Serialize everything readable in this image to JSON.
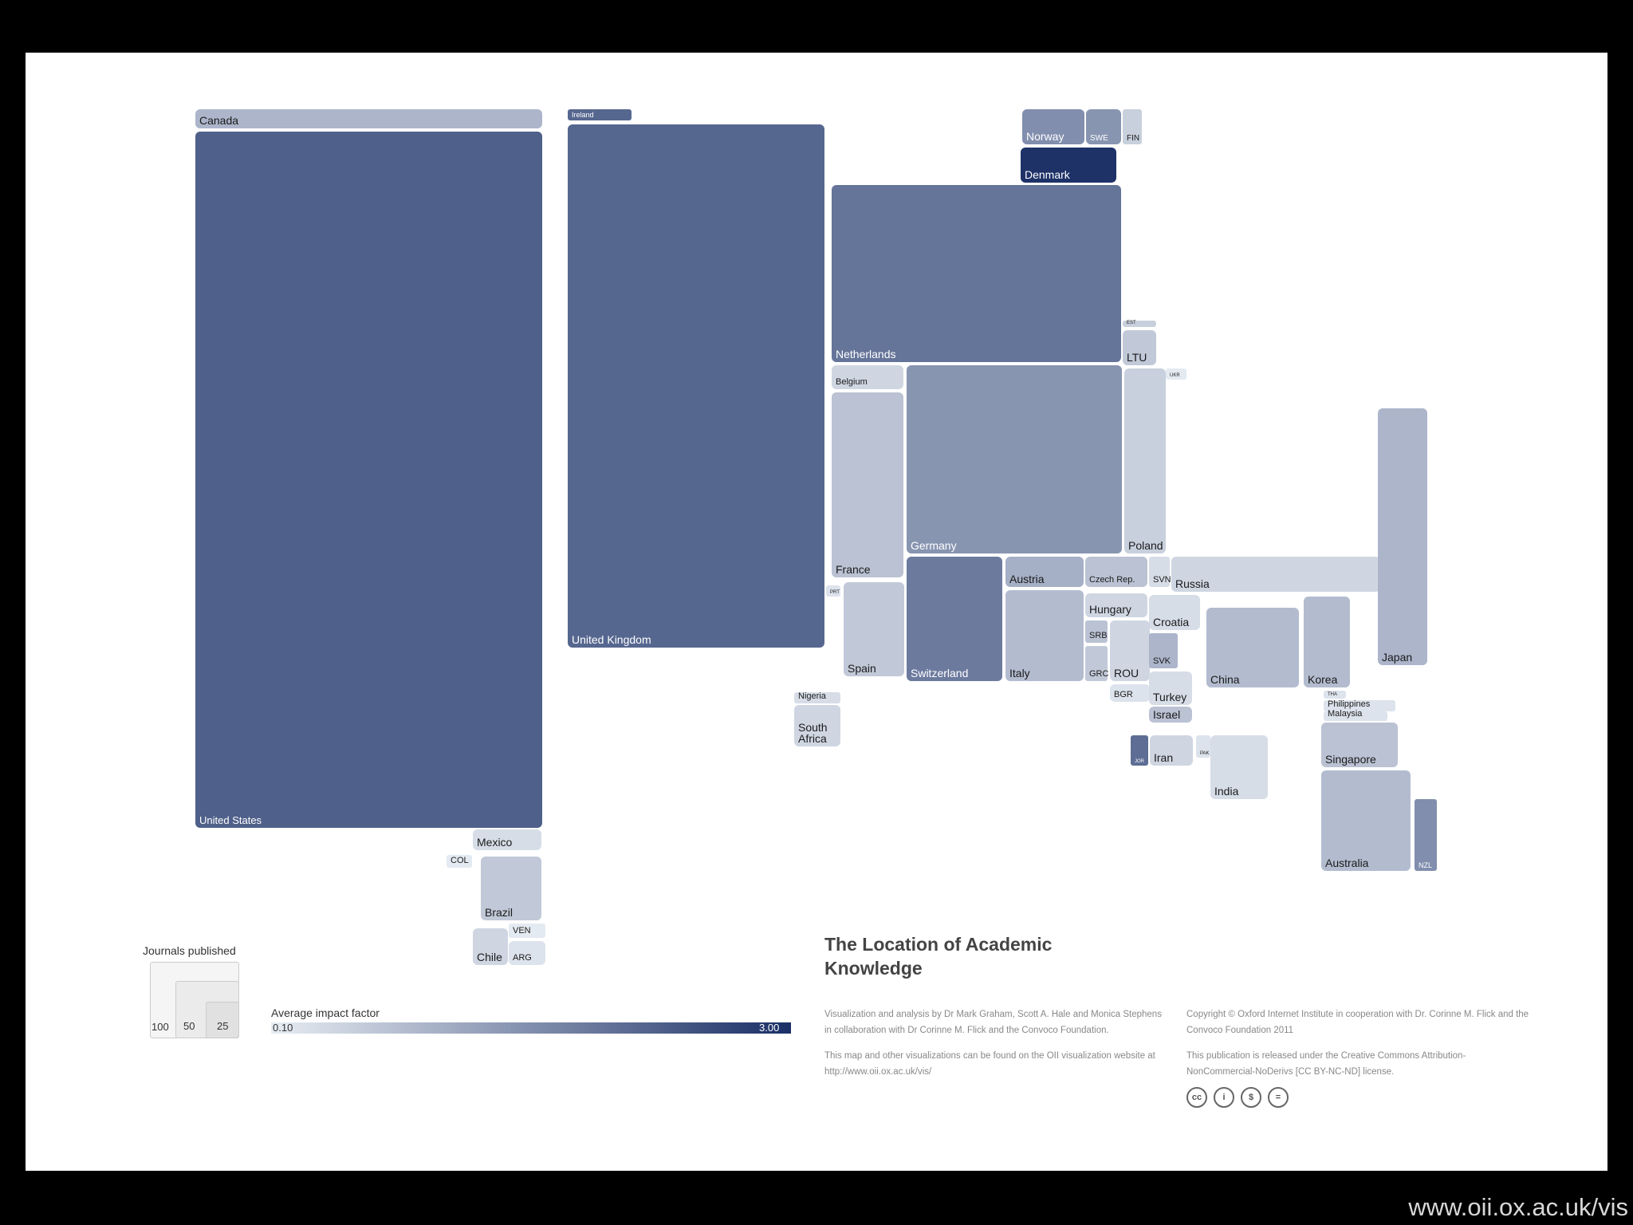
{
  "chart_data": {
    "type": "treemap",
    "title": "The Location of Academic Knowledge",
    "size_measure": "Journals published",
    "color_measure": "Average impact factor",
    "color_scale": {
      "min": 0.1,
      "max": 3.0,
      "min_label": "0.10",
      "max_label": "3.00",
      "low_color": "#e8edf3",
      "high_color": "#1a2f66"
    },
    "size_legend": {
      "title": "Journals published",
      "values": [
        "100",
        "50",
        "25"
      ]
    },
    "countries": [
      {
        "name": "United States",
        "label": "United States",
        "impact": 2.25
      },
      {
        "name": "Canada",
        "label": "Canada",
        "impact": 0.95
      },
      {
        "name": "United Kingdom",
        "label": "United Kingdom",
        "impact": 2.15
      },
      {
        "name": "Ireland",
        "label": "Ireland",
        "impact": 2.15
      },
      {
        "name": "Netherlands",
        "label": "Netherlands",
        "impact": 1.95
      },
      {
        "name": "Norway",
        "label": "Norway",
        "impact": 1.55
      },
      {
        "name": "Sweden",
        "label": "SWE",
        "impact": 1.45
      },
      {
        "name": "Finland",
        "label": "FIN",
        "impact": 0.55
      },
      {
        "name": "Denmark",
        "label": "Denmark",
        "impact": 2.95
      },
      {
        "name": "Estonia",
        "label": "EST",
        "impact": 0.55
      },
      {
        "name": "Lithuania",
        "label": "LTU",
        "impact": 0.65
      },
      {
        "name": "Ukraine",
        "label": "UKR",
        "impact": 0.15
      },
      {
        "name": "Belgium",
        "label": "Belgium",
        "impact": 0.45
      },
      {
        "name": "Germany",
        "label": "Germany",
        "impact": 1.45
      },
      {
        "name": "Poland",
        "label": "Poland",
        "impact": 0.55
      },
      {
        "name": "France",
        "label": "France",
        "impact": 0.75
      },
      {
        "name": "Portugal",
        "label": "PRT",
        "impact": 0.25
      },
      {
        "name": "Spain",
        "label": "Spain",
        "impact": 0.65
      },
      {
        "name": "Switzerland",
        "label": "Switzerland",
        "impact": 1.85
      },
      {
        "name": "Austria",
        "label": "Austria",
        "impact": 1.05
      },
      {
        "name": "Czech Republic",
        "label": "Czech Rep.",
        "impact": 0.75
      },
      {
        "name": "Slovenia",
        "label": "SVN",
        "impact": 0.35
      },
      {
        "name": "Russia",
        "label": "Russia",
        "impact": 0.45
      },
      {
        "name": "Italy",
        "label": "Italy",
        "impact": 0.85
      },
      {
        "name": "Hungary",
        "label": "Hungary",
        "impact": 0.45
      },
      {
        "name": "Croatia",
        "label": "Croatia",
        "impact": 0.35
      },
      {
        "name": "Serbia",
        "label": "SRB",
        "impact": 0.75
      },
      {
        "name": "Greece",
        "label": "GRC",
        "impact": 0.65
      },
      {
        "name": "Romania",
        "label": "ROU",
        "impact": 0.45
      },
      {
        "name": "Bulgaria",
        "label": "BGR",
        "impact": 0.25
      },
      {
        "name": "Slovakia",
        "label": "SVK",
        "impact": 0.95
      },
      {
        "name": "Turkey",
        "label": "Turkey",
        "impact": 0.35
      },
      {
        "name": "Israel",
        "label": "Israel",
        "impact": 0.75
      },
      {
        "name": "Jordan",
        "label": "JOR",
        "impact": 2.05
      },
      {
        "name": "Iran",
        "label": "Iran",
        "impact": 0.45
      },
      {
        "name": "Pakistan",
        "label": "PAK",
        "impact": 0.25
      },
      {
        "name": "India",
        "label": "India",
        "impact": 0.35
      },
      {
        "name": "China",
        "label": "China",
        "impact": 0.85
      },
      {
        "name": "Korea",
        "label": "Korea",
        "impact": 0.85
      },
      {
        "name": "Japan",
        "label": "Japan",
        "impact": 0.95
      },
      {
        "name": "Thailand",
        "label": "THA",
        "impact": 0.25
      },
      {
        "name": "Philippines",
        "label": "Philippines",
        "impact": 0.25
      },
      {
        "name": "Malaysia",
        "label": "Malaysia",
        "impact": 0.25
      },
      {
        "name": "Singapore",
        "label": "Singapore",
        "impact": 0.75
      },
      {
        "name": "Australia",
        "label": "Australia",
        "impact": 0.85
      },
      {
        "name": "New Zealand",
        "label": "NZL",
        "impact": 1.55
      },
      {
        "name": "Nigeria",
        "label": "Nigeria",
        "impact": 0.35
      },
      {
        "name": "South Africa",
        "label": "South Africa",
        "impact": 0.45
      },
      {
        "name": "Mexico",
        "label": "Mexico",
        "impact": 0.35
      },
      {
        "name": "Colombia",
        "label": "COL",
        "impact": 0.15
      },
      {
        "name": "Brazil",
        "label": "Brazil",
        "impact": 0.65
      },
      {
        "name": "Venezuela",
        "label": "VEN",
        "impact": 0.15
      },
      {
        "name": "Chile",
        "label": "Chile",
        "impact": 0.45
      },
      {
        "name": "Argentina",
        "label": "ARG",
        "impact": 0.25
      }
    ]
  },
  "credits": {
    "col1_p1": "Visualization and analysis by Dr Mark Graham, Scott A. Hale and Monica Stephens in collaboration with Dr Corinne M. Flick and the Convoco Foundation.",
    "col1_p2": "This map and other visualizations can be found on the OII visualization website at http://www.oii.ox.ac.uk/vis/",
    "col2_p1": "Copyright © Oxford Internet Institute in cooperation with Dr. Corinne M. Flick and the Convoco Foundation 2011",
    "col2_p2": "This publication is released under the Creative Commons Attribution-NonCommercial-NoDerivs [CC BY-NC-ND] license."
  },
  "license_icons": [
    "cc",
    "by",
    "nc",
    "nd"
  ],
  "license_glyphs": [
    "cc",
    "i",
    "$",
    "="
  ],
  "watermark": "www.oii.ox.ac.uk/vis"
}
